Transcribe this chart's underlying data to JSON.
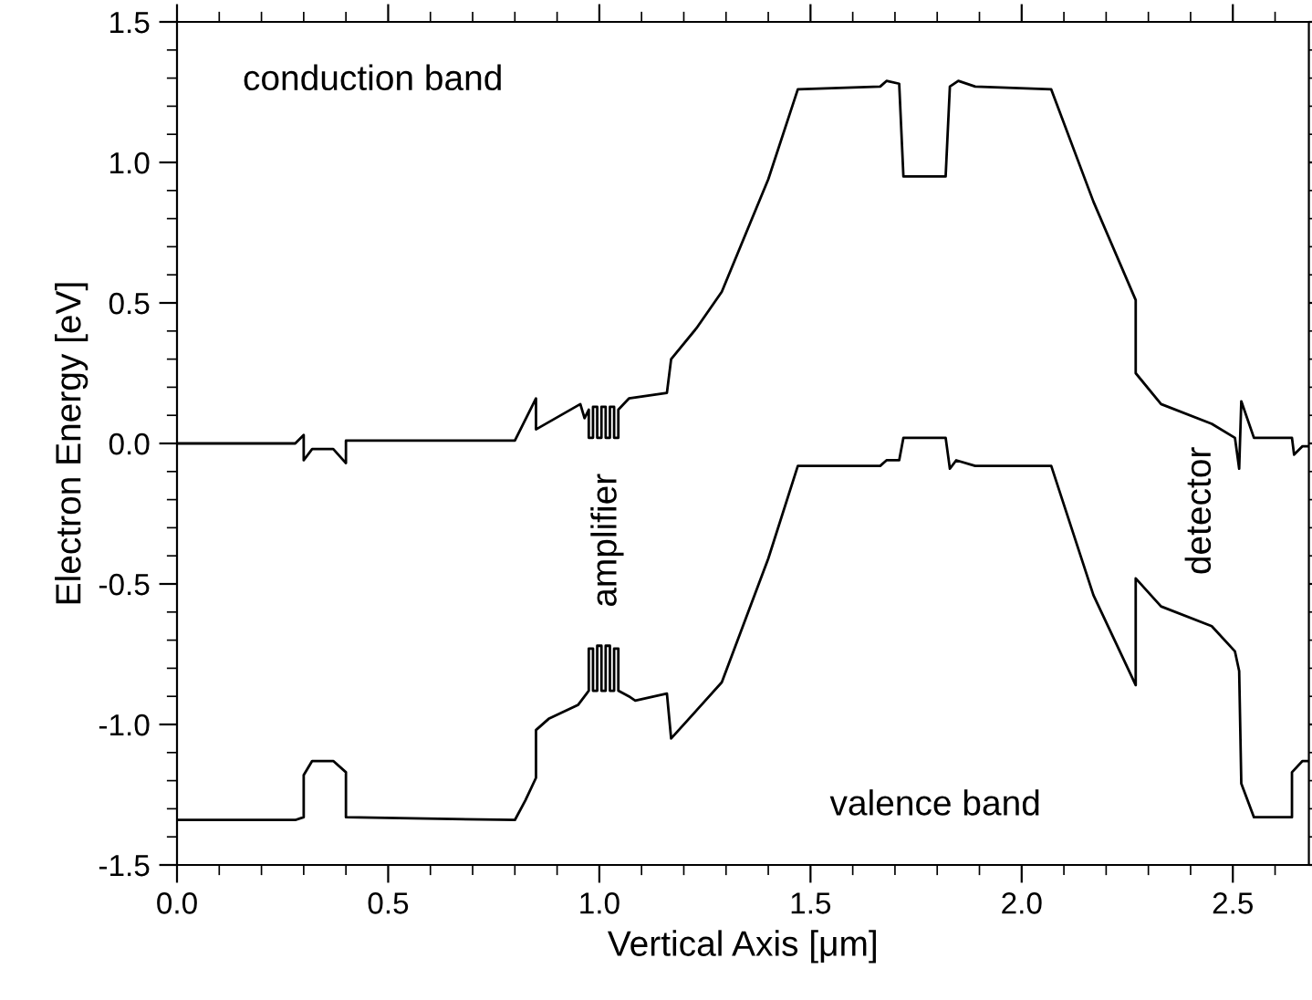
{
  "chart_data": {
    "type": "line",
    "xlabel": "Vertical Axis [μm]",
    "ylabel": "Electron Energy [eV]",
    "xlim": [
      0,
      2.68
    ],
    "ylim": [
      -1.5,
      1.5
    ],
    "xticks": [
      {
        "value": 0,
        "label": "0.0"
      },
      0.5,
      {
        "value": 1,
        "label": "1.0"
      },
      1.5,
      {
        "value": 2,
        "label": "2.0"
      },
      2.5
    ],
    "yticks": [
      {
        "value": -1.5,
        "label": "-1.5"
      },
      {
        "value": -1,
        "label": "-1.0"
      },
      {
        "value": -0.5,
        "label": "-0.5"
      },
      {
        "value": 0,
        "label": "0.0"
      },
      0.5,
      {
        "value": 1,
        "label": "1.0"
      },
      1.5
    ],
    "grid": false,
    "legend": false,
    "marker": "none",
    "line_style": "solid",
    "annotations": [
      "conduction band",
      "amplifier",
      "detector",
      "valence band"
    ],
    "series": [
      {
        "color": "#000000",
        "x": [
          0,
          0.28,
          0.3,
          0.3,
          0.32,
          0.37,
          0.4,
          0.4,
          0.8,
          0.85,
          0.85,
          0.955,
          0.965,
          0.975,
          0.975,
          0.985,
          0.985,
          0.995,
          0.995,
          1.005,
          1.005,
          1.015,
          1.015,
          1.025,
          1.025,
          1.035,
          1.035,
          1.045,
          1.045,
          1.07,
          1.16,
          1.17,
          1.23,
          1.29,
          1.4,
          1.47,
          1.665,
          1.68,
          1.71,
          1.72,
          1.82,
          1.83,
          1.85,
          1.89,
          2.07,
          2.17,
          2.27,
          2.27,
          2.33,
          2.45,
          2.505,
          2.515,
          2.52,
          2.55,
          2.64,
          2.645,
          2.665,
          2.68
        ],
        "values": [
          0,
          0,
          0.03,
          -0.06,
          -0.02,
          -0.02,
          -0.07,
          0.01,
          0.01,
          0.16,
          0.05,
          0.14,
          0.09,
          0.12,
          0.02,
          0.02,
          0.13,
          0.13,
          0.02,
          0.02,
          0.13,
          0.13,
          0.02,
          0.02,
          0.13,
          0.13,
          0.02,
          0.02,
          0.12,
          0.16,
          0.18,
          0.3,
          0.41,
          0.54,
          0.94,
          1.26,
          1.27,
          1.29,
          1.28,
          0.95,
          0.95,
          1.27,
          1.29,
          1.27,
          1.26,
          0.86,
          0.51,
          0.25,
          0.14,
          0.07,
          0.02,
          -0.09,
          0.15,
          0.02,
          0.02,
          -0.04,
          -0.01,
          -0.01
        ]
      },
      {
        "color": "#000000",
        "x": [
          0,
          0.28,
          0.3,
          0.3,
          0.32,
          0.37,
          0.4,
          0.4,
          0.8,
          0.825,
          0.85,
          0.85,
          0.88,
          0.95,
          0.97,
          0.975,
          0.975,
          0.985,
          0.985,
          0.995,
          0.995,
          1.005,
          1.005,
          1.015,
          1.015,
          1.025,
          1.025,
          1.035,
          1.035,
          1.045,
          1.045,
          1.07,
          1.085,
          1.16,
          1.17,
          1.23,
          1.29,
          1.4,
          1.47,
          1.665,
          1.68,
          1.71,
          1.72,
          1.82,
          1.83,
          1.845,
          1.89,
          2.07,
          2.17,
          2.27,
          2.27,
          2.33,
          2.45,
          2.505,
          2.515,
          2.52,
          2.55,
          2.64,
          2.64,
          2.665,
          2.68
        ],
        "values": [
          -1.34,
          -1.34,
          -1.33,
          -1.18,
          -1.13,
          -1.13,
          -1.17,
          -1.33,
          -1.34,
          -1.27,
          -1.19,
          -1.02,
          -0.98,
          -0.93,
          -0.89,
          -0.88,
          -0.73,
          -0.73,
          -0.88,
          -0.88,
          -0.72,
          -0.72,
          -0.88,
          -0.88,
          -0.72,
          -0.72,
          -0.88,
          -0.88,
          -0.73,
          -0.73,
          -0.88,
          -0.9,
          -0.915,
          -0.89,
          -1.05,
          -0.95,
          -0.85,
          -0.41,
          -0.08,
          -0.08,
          -0.06,
          -0.06,
          0.02,
          0.02,
          -0.09,
          -0.06,
          -0.08,
          -0.08,
          -0.54,
          -0.86,
          -0.48,
          -0.58,
          -0.65,
          -0.74,
          -0.81,
          -1.21,
          -1.33,
          -1.33,
          -1.17,
          -1.13,
          -1.13
        ]
      }
    ]
  }
}
